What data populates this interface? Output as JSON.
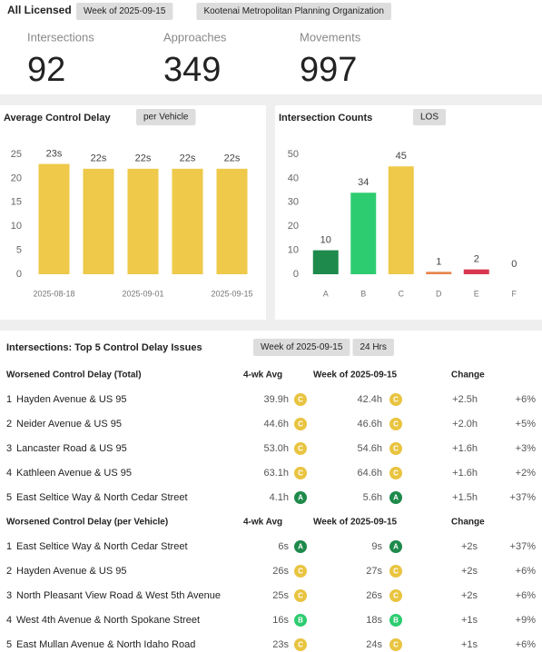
{
  "header": {
    "title": "All Licensed",
    "filters": [
      "Week of 2025-09-15",
      "Kootenai Metropolitan Planning Organization"
    ]
  },
  "kpis": [
    {
      "label": "Intersections",
      "value": 92
    },
    {
      "label": "Approaches",
      "value": 349
    },
    {
      "label": "Movements",
      "value": 997
    }
  ],
  "chart_data": [
    {
      "type": "bar",
      "title": "Average Control Delay",
      "filter": "per Vehicle",
      "categories": [
        "2025-08-18",
        null,
        "2025-09-01",
        null,
        "2025-09-15"
      ],
      "values": [
        23,
        22,
        22,
        22,
        22
      ],
      "value_labels": [
        "23s",
        "22s",
        "22s",
        "22s",
        "22s"
      ],
      "color": "#eec94a",
      "ylim": [
        0,
        25
      ],
      "yticks": [
        0,
        5,
        10,
        15,
        20,
        25
      ]
    },
    {
      "type": "bar",
      "title": "Intersection Counts",
      "filter": "LOS",
      "categories": [
        "A",
        "B",
        "C",
        "D",
        "E",
        "F"
      ],
      "values": [
        10,
        34,
        45,
        1,
        2,
        0
      ],
      "colors": [
        "#1e8a4c",
        "#2ecc71",
        "#eec94a",
        "#e8834a",
        "#d9374f",
        "#999999"
      ],
      "ylim": [
        0,
        50
      ],
      "yticks": [
        0,
        10,
        20,
        30,
        40,
        50
      ]
    }
  ],
  "table": {
    "title": "Intersections: Top 5 Control Delay Issues",
    "filters": [
      "Week of 2025-09-15",
      "24 Hrs"
    ],
    "sections": [
      {
        "columns": [
          "Worsened Control Delay (Total)",
          "4-wk Avg",
          "Week of 2025-09-15",
          "Change"
        ],
        "rows": [
          [
            1,
            "Hayden Avenue & US 95",
            "39.9h",
            "C",
            "42.4h",
            "C",
            "+2.5h",
            "+6%"
          ],
          [
            2,
            "Neider Avenue & US 95",
            "44.6h",
            "C",
            "46.6h",
            "C",
            "+2.0h",
            "+5%"
          ],
          [
            3,
            "Lancaster Road & US 95",
            "53.0h",
            "C",
            "54.6h",
            "C",
            "+1.6h",
            "+3%"
          ],
          [
            4,
            "Kathleen Avenue & US 95",
            "63.1h",
            "C",
            "64.6h",
            "C",
            "+1.6h",
            "+2%"
          ],
          [
            5,
            "East Seltice Way & North Cedar Street",
            "4.1h",
            "A",
            "5.6h",
            "A",
            "+1.5h",
            "+37%"
          ]
        ]
      },
      {
        "columns": [
          "Worsened Control Delay (per Vehicle)",
          "4-wk Avg",
          "Week of 2025-09-15",
          "Change"
        ],
        "rows": [
          [
            1,
            "East Seltice Way & North Cedar Street",
            "6s",
            "A",
            "9s",
            "A",
            "+2s",
            "+37%"
          ],
          [
            2,
            "Hayden Avenue & US 95",
            "26s",
            "C",
            "27s",
            "C",
            "+2s",
            "+6%"
          ],
          [
            3,
            "North Pleasant View Road & West 5th Avenue",
            "25s",
            "C",
            "26s",
            "C",
            "+2s",
            "+6%"
          ],
          [
            4,
            "West 4th Avenue & North Spokane Street",
            "16s",
            "B",
            "18s",
            "B",
            "+1s",
            "+9%"
          ],
          [
            5,
            "East Mullan Avenue & North Idaho Road",
            "23s",
            "C",
            "24s",
            "C",
            "+1s",
            "+6%"
          ]
        ]
      }
    ]
  }
}
